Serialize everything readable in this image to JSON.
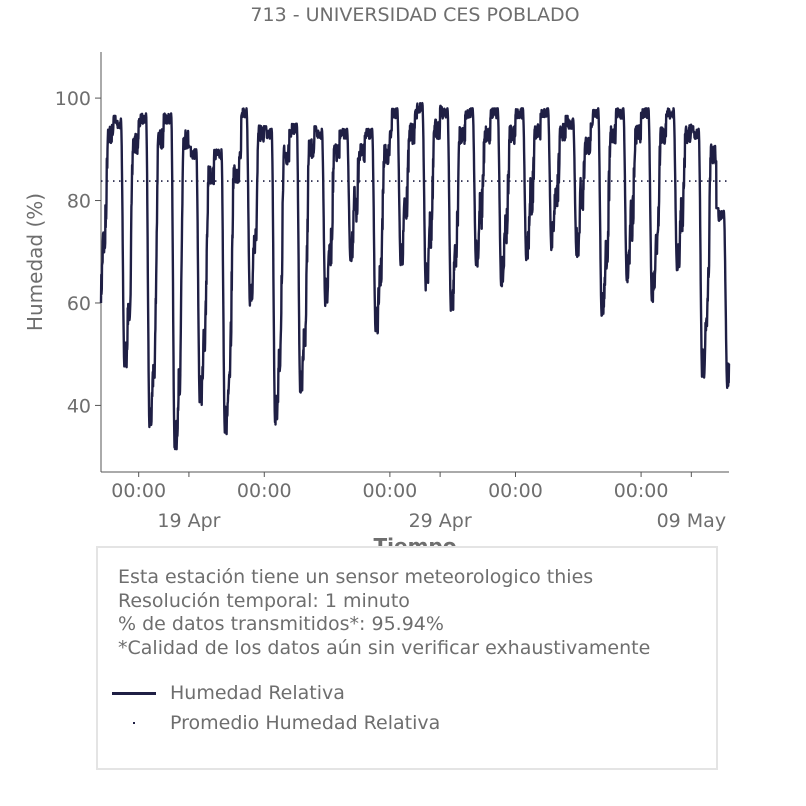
{
  "chart_data": {
    "type": "line",
    "title": "713 - UNIVERSIDAD CES POBLADO",
    "xlabel": "Tiempo",
    "ylabel": "Humedad (%)",
    "x_range": [
      "2021-04-15T12:00",
      "2021-05-10T12:00"
    ],
    "ylim": [
      27,
      109
    ],
    "y_ticks": [
      40,
      60,
      80,
      100
    ],
    "x_ticks": [
      {
        "x": "2021-04-17T00:00",
        "time": "00:00",
        "date": ""
      },
      {
        "x": "2021-04-22T00:00",
        "time": "00:00",
        "date": ""
      },
      {
        "x": "2021-04-27T00:00",
        "time": "00:00",
        "date": ""
      },
      {
        "x": "2021-05-02T00:00",
        "time": "00:00",
        "date": ""
      },
      {
        "x": "2021-05-07T00:00",
        "time": "00:00",
        "date": ""
      }
    ],
    "date_ticks": [
      {
        "x": "2021-04-19T00:00",
        "label": "19 Apr"
      },
      {
        "x": "2021-04-29T00:00",
        "label": "29 Apr"
      },
      {
        "x": "2021-05-09T00:00",
        "label": "09 May"
      }
    ],
    "grid": false,
    "series": [
      {
        "name": "Humedad Relativa",
        "style": "solid",
        "color": "#1f1f44",
        "daily_cycle": [
          {
            "day": "2021-04-15",
            "min": 60,
            "max": 98
          },
          {
            "day": "2021-04-16",
            "min": 47,
            "max": 96
          },
          {
            "day": "2021-04-17",
            "min": 35,
            "max": 97
          },
          {
            "day": "2021-04-18",
            "min": 31,
            "max": 97
          },
          {
            "day": "2021-04-19",
            "min": 40,
            "max": 90
          },
          {
            "day": "2021-04-20",
            "min": 34,
            "max": 90
          },
          {
            "day": "2021-04-21",
            "min": 59,
            "max": 98
          },
          {
            "day": "2021-04-22",
            "min": 36,
            "max": 94
          },
          {
            "day": "2021-04-23",
            "min": 42,
            "max": 95
          },
          {
            "day": "2021-04-24",
            "min": 59,
            "max": 94
          },
          {
            "day": "2021-04-25",
            "min": 68,
            "max": 94
          },
          {
            "day": "2021-04-26",
            "min": 54,
            "max": 94
          },
          {
            "day": "2021-04-27",
            "min": 67,
            "max": 98
          },
          {
            "day": "2021-04-28",
            "min": 62,
            "max": 99
          },
          {
            "day": "2021-04-29",
            "min": 58,
            "max": 98
          },
          {
            "day": "2021-04-30",
            "min": 67,
            "max": 98
          },
          {
            "day": "2021-05-01",
            "min": 63,
            "max": 98
          },
          {
            "day": "2021-05-02",
            "min": 68,
            "max": 98
          },
          {
            "day": "2021-05-03",
            "min": 70,
            "max": 98
          },
          {
            "day": "2021-05-04",
            "min": 69,
            "max": 96
          },
          {
            "day": "2021-05-05",
            "min": 57,
            "max": 98
          },
          {
            "day": "2021-05-06",
            "min": 64,
            "max": 98
          },
          {
            "day": "2021-05-07",
            "min": 60,
            "max": 98
          },
          {
            "day": "2021-05-08",
            "min": 66,
            "max": 98
          },
          {
            "day": "2021-05-09",
            "min": 45,
            "max": 94
          },
          {
            "day": "2021-05-10",
            "min": 43,
            "max": 78
          }
        ]
      },
      {
        "name": "Promedio Humedad Relativa",
        "style": "dotted",
        "color": "#1f1f44",
        "value": 83.8
      }
    ]
  },
  "info": {
    "lines": [
      "Esta estación tiene un sensor meteorologico thies",
      "Resolución temporal: 1 minuto",
      "% de datos transmitidos*: 95.94%",
      "*Calidad de los datos aún sin verificar exhaustivamente"
    ]
  },
  "legend": {
    "items": [
      {
        "label": "Humedad Relativa"
      },
      {
        "label": "Promedio Humedad Relativa"
      }
    ]
  }
}
